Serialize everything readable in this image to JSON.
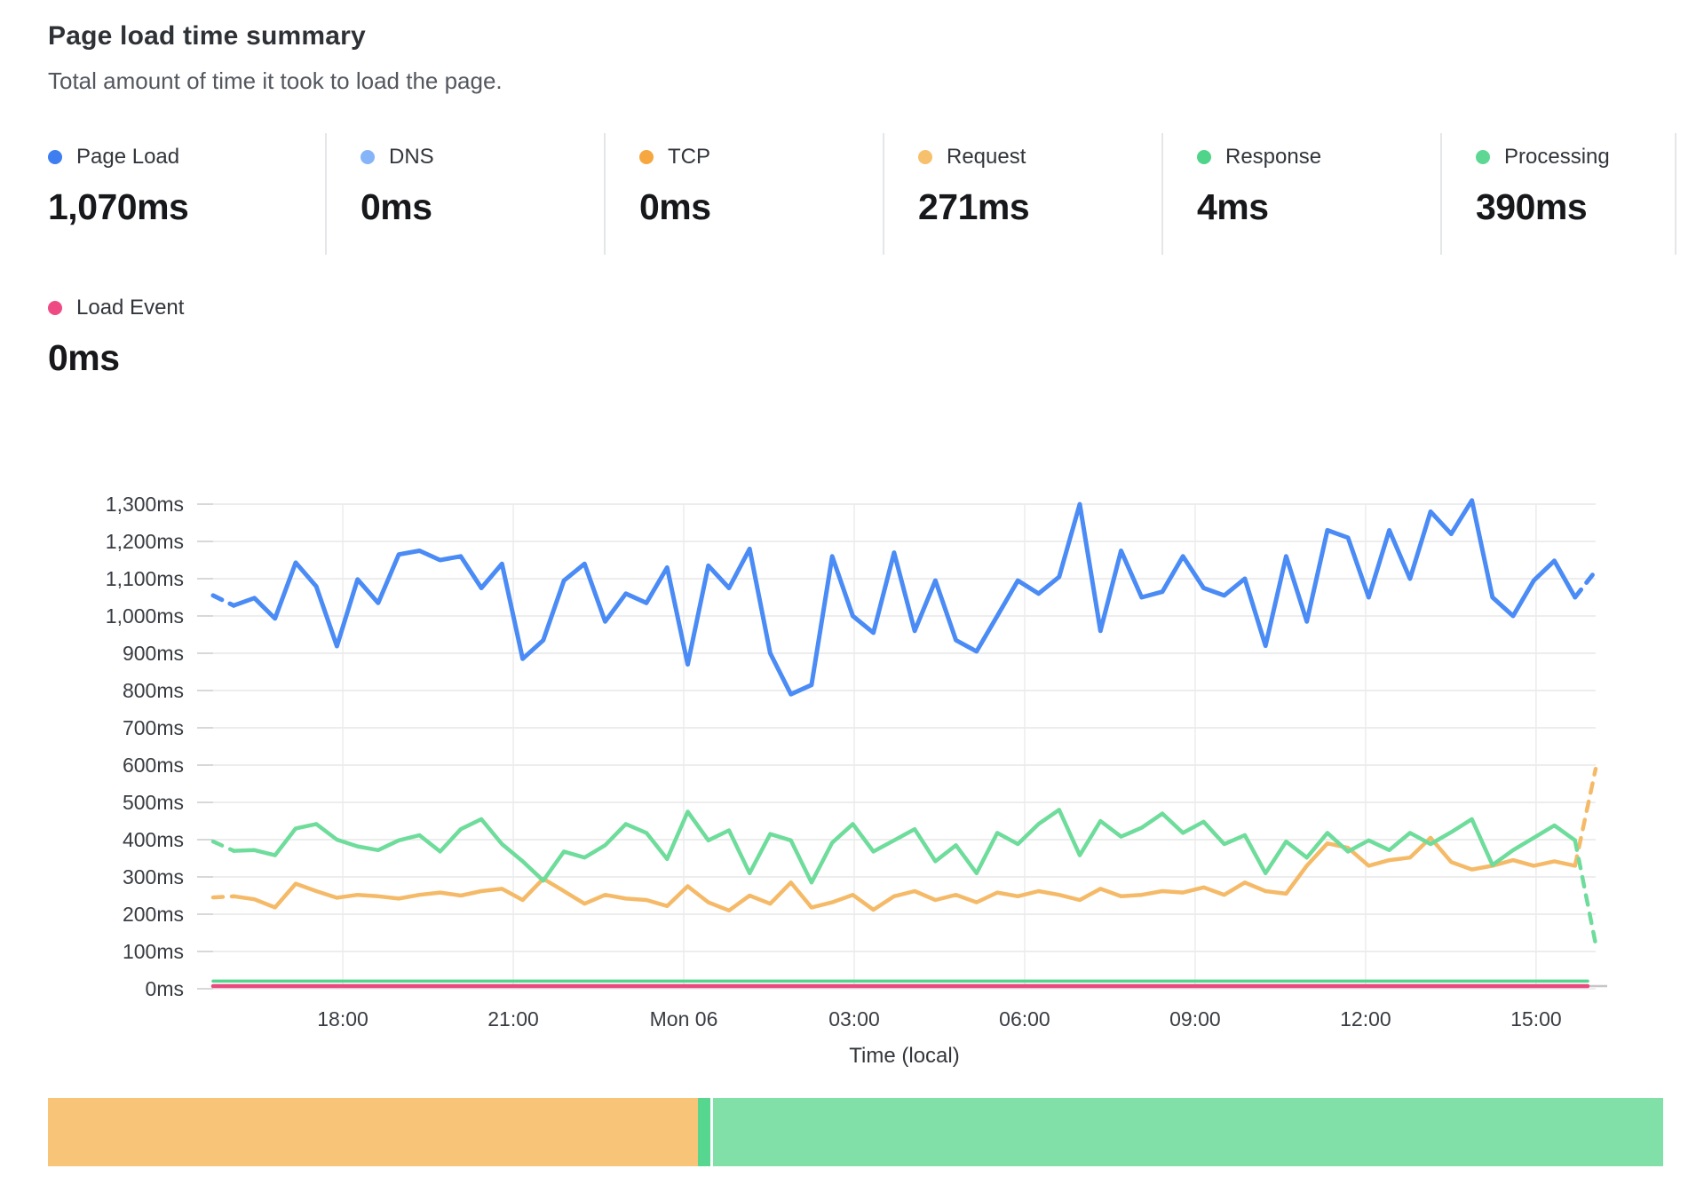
{
  "header": {
    "title": "Page load time summary",
    "subtitle": "Total amount of time it took to load the page."
  },
  "metrics": [
    {
      "id": "page-load",
      "label": "Page Load",
      "value": "1,070ms",
      "color": "#3e7ef0"
    },
    {
      "id": "dns",
      "label": "DNS",
      "value": "0ms",
      "color": "#85b5f8"
    },
    {
      "id": "tcp",
      "label": "TCP",
      "value": "0ms",
      "color": "#f6a73f"
    },
    {
      "id": "request",
      "label": "Request",
      "value": "271ms",
      "color": "#f7c06c"
    },
    {
      "id": "response",
      "label": "Response",
      "value": "4ms",
      "color": "#4fd48a"
    },
    {
      "id": "processing",
      "label": "Processing",
      "value": "390ms",
      "color": "#5fd794"
    }
  ],
  "metrics_row2": [
    {
      "id": "load-event",
      "label": "Load Event",
      "value": "0ms",
      "color": "#ee4b85"
    }
  ],
  "chart_data": {
    "type": "line",
    "title": "Page load time summary",
    "xlabel": "Time (local)",
    "ylabel": "",
    "ylim": [
      0,
      1300
    ],
    "y_tick_step": 100,
    "y_tick_suffix": "ms",
    "grid": true,
    "x_ticks": [
      "18:00",
      "21:00",
      "Mon 06",
      "03:00",
      "06:00",
      "09:00",
      "12:00",
      "15:00"
    ],
    "x_first_frac": 0.0938,
    "x_step_frac": 0.1233,
    "series": [
      {
        "name": "Response",
        "color": "#52d58c",
        "width": 3.5,
        "constant": 4
      },
      {
        "name": "Load Event",
        "color": "#e9497f",
        "width": 4.5,
        "constant": 0
      },
      {
        "name": "Request",
        "color": "#f5ba68",
        "width": 4.5,
        "dashed_start": true,
        "dashed_end": true,
        "values": [
          245,
          248,
          240,
          218,
          282,
          262,
          244,
          252,
          248,
          242,
          252,
          258,
          250,
          262,
          268,
          238,
          295,
          262,
          228,
          252,
          242,
          238,
          222,
          275,
          232,
          210,
          250,
          228,
          285,
          218,
          232,
          252,
          212,
          248,
          262,
          238,
          252,
          232,
          258,
          248,
          262,
          252,
          238,
          268,
          248,
          252,
          262,
          258,
          272,
          252,
          285,
          262,
          255,
          330,
          390,
          378,
          330,
          345,
          352,
          405,
          340,
          320,
          330,
          345,
          330,
          342,
          330,
          590
        ]
      },
      {
        "name": "Processing",
        "color": "#6edc9b",
        "width": 4.5,
        "dashed_start": true,
        "dashed_end": true,
        "values": [
          395,
          370,
          372,
          358,
          430,
          442,
          400,
          382,
          372,
          398,
          412,
          368,
          428,
          455,
          388,
          342,
          290,
          368,
          352,
          385,
          442,
          418,
          348,
          475,
          398,
          425,
          310,
          415,
          398,
          285,
          392,
          442,
          368,
          398,
          428,
          342,
          385,
          310,
          418,
          388,
          442,
          480,
          358,
          450,
          408,
          432,
          470,
          418,
          448,
          388,
          412,
          310,
          395,
          352,
          418,
          368,
          398,
          372,
          418,
          388,
          420,
          455,
          332,
          372,
          405,
          438,
          398,
          120
        ]
      },
      {
        "name": "Page Load",
        "color": "#4a8bf5",
        "width": 5,
        "dashed_start": true,
        "dashed_end": true,
        "values": [
          1055,
          1028,
          1048,
          993,
          1143,
          1079,
          919,
          1098,
          1035,
          1165,
          1175,
          1150,
          1160,
          1075,
          1140,
          885,
          935,
          1095,
          1140,
          985,
          1060,
          1035,
          1130,
          870,
          1135,
          1075,
          1180,
          900,
          790,
          815,
          1160,
          1000,
          955,
          1170,
          960,
          1095,
          935,
          905,
          1000,
          1095,
          1060,
          1105,
          1300,
          960,
          1175,
          1050,
          1065,
          1160,
          1075,
          1055,
          1100,
          920,
          1160,
          985,
          1230,
          1210,
          1050,
          1230,
          1100,
          1280,
          1220,
          1310,
          1050,
          1000,
          1095,
          1148,
          1050,
          1121
        ]
      }
    ]
  },
  "timeline_bar": {
    "segments": [
      {
        "name": "request-portion",
        "color": "#f8c477",
        "frac": 0.4025
      },
      {
        "name": "divider-sliver",
        "color": "#57d690",
        "frac": 0.0077
      },
      {
        "name": "gap",
        "color": "#ffffff",
        "frac": 0.0017
      },
      {
        "name": "processing-portion",
        "color": "#80e0a7",
        "frac": 0.5881
      }
    ]
  }
}
